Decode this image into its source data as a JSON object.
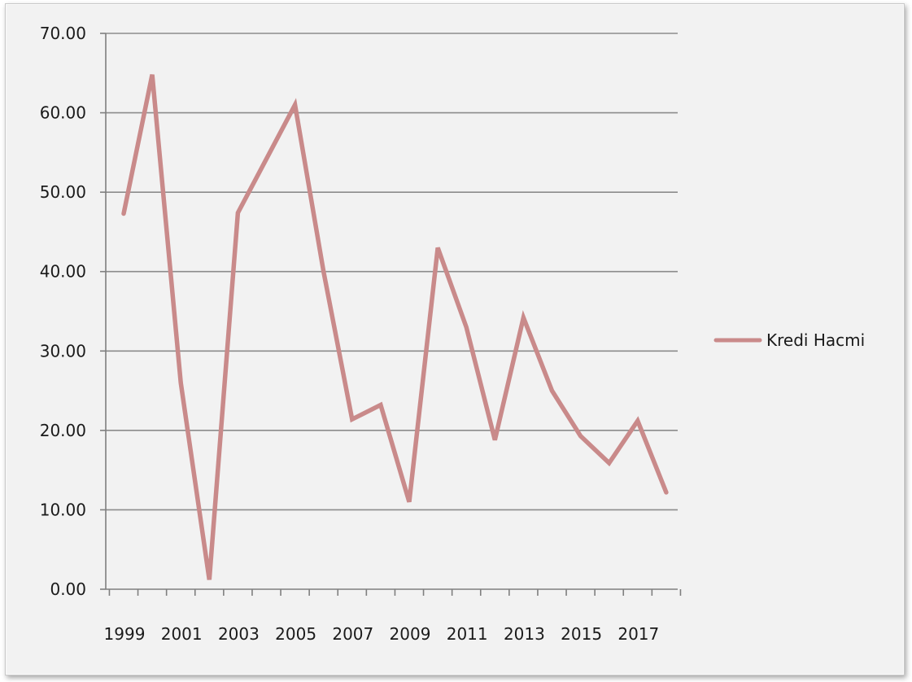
{
  "chart_data": {
    "type": "line",
    "title": "",
    "xlabel": "",
    "ylabel": "",
    "x": [
      1999,
      2000,
      2001,
      2002,
      2003,
      2004,
      2005,
      2006,
      2007,
      2008,
      2009,
      2010,
      2011,
      2012,
      2013,
      2014,
      2015,
      2016,
      2017,
      2018
    ],
    "series": [
      {
        "name": "Kredi Hacmi",
        "color": "#c98a8a",
        "values": [
          47.3,
          64.8,
          26.0,
          1.2,
          47.4,
          54.2,
          61.0,
          40.0,
          21.4,
          23.2,
          11.0,
          43.0,
          33.0,
          18.8,
          34.2,
          25.0,
          19.3,
          15.9,
          21.2,
          12.2
        ]
      }
    ],
    "ylim": [
      0,
      70
    ],
    "y_ticks": [
      "0.00",
      "10.00",
      "20.00",
      "30.00",
      "40.00",
      "50.00",
      "60.00",
      "70.00"
    ],
    "x_tick_labels": [
      "1999",
      "2001",
      "2003",
      "2005",
      "2007",
      "2009",
      "2011",
      "2013",
      "2015",
      "2017"
    ],
    "grid": "horizontal",
    "legend_placement": "right"
  }
}
